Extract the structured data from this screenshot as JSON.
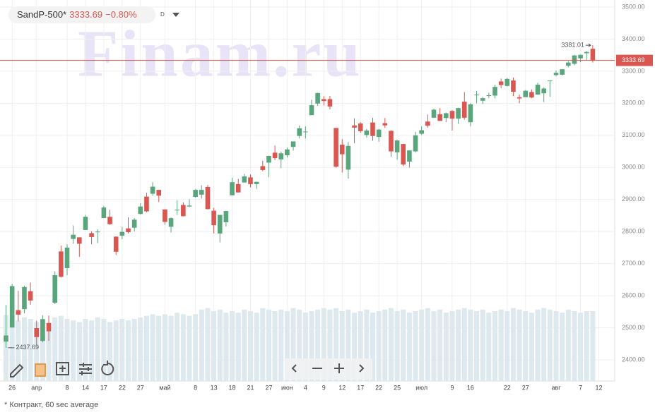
{
  "header": {
    "symbol": "SandP-500*",
    "change": "−0.80%",
    "interval": "D"
  },
  "watermark": "Finam.ru",
  "footnote": "* Контракт, 60 sec average",
  "chart_data": {
    "type": "candlestick",
    "categories": [
      null,
      "26",
      null,
      null,
      null,
      "апр",
      null,
      null,
      null,
      null,
      "8",
      null,
      null,
      "14",
      null,
      null,
      "17",
      null,
      null,
      "22",
      null,
      null,
      "27",
      null,
      null,
      null,
      "май",
      null,
      null,
      null,
      null,
      "8",
      null,
      null,
      "13",
      null,
      null,
      "18",
      null,
      null,
      "21",
      null,
      null,
      "27",
      null,
      null,
      "июн",
      null,
      null,
      "4",
      null,
      null,
      "9",
      null,
      null,
      "12",
      null,
      null,
      "17",
      null,
      null,
      "22",
      null,
      null,
      "25",
      null,
      null,
      null,
      "июл",
      null,
      null,
      null,
      null,
      "9",
      null,
      null,
      "16",
      null,
      null,
      null,
      null,
      null,
      "22",
      null,
      null,
      "27",
      null,
      null,
      null,
      null,
      "авг",
      null,
      null,
      null,
      "7",
      null,
      null,
      "12"
    ],
    "open": [
      2457,
      2501,
      2555,
      2558,
      2614,
      2499,
      2459,
      2515,
      2578,
      2738,
      2686,
      2777,
      2782,
      2805,
      2795,
      2799,
      2842,
      2846,
      2784,
      2787,
      2810,
      2812,
      2855,
      2909,
      2918,
      2930,
      2869,
      2815,
      2868,
      2883,
      2878,
      2908,
      2915,
      2939,
      2865,
      2794,
      2829,
      2913,
      2948,
      2953,
      2969,
      2948,
      3004,
      3015,
      3046,
      3025,
      3038,
      3064,
      3098,
      3112,
      3163,
      3199,
      3213,
      3213,
      3123,
      3071,
      2993,
      3131,
      3137,
      3101,
      3140,
      3095,
      3138,
      3114,
      3047,
      3073,
      3018,
      3050,
      3105,
      3143,
      3155,
      3166,
      3154,
      3176,
      3152,
      3205,
      3141,
      3225,
      3208,
      3224,
      3224,
      3268,
      3254,
      3271,
      3219,
      3219,
      3235,
      3227,
      3231,
      3270,
      3288,
      3289,
      3317,
      3323,
      3340,
      3356,
      3370,
      null
    ],
    "high": [
      2571,
      2637,
      2615,
      2631,
      2641,
      2522,
      2539,
      2538,
      2676,
      2756,
      2760,
      2819,
      2782,
      2852,
      2801,
      2807,
      2880,
      2868,
      2785,
      2815,
      2844,
      2842,
      2888,
      2921,
      2954,
      2930,
      2869,
      2844,
      2898,
      2891,
      2901,
      2932,
      2944,
      2945,
      2874,
      2852,
      2865,
      2968,
      2964,
      2980,
      2978,
      2956,
      3021,
      3036,
      3068,
      3049,
      3062,
      3081,
      3131,
      3128,
      3211,
      3233,
      3222,
      3223,
      3123,
      3088,
      3079,
      3153,
      3141,
      3120,
      3155,
      3120,
      3154,
      3116,
      3086,
      3073,
      3053,
      3111,
      3128,
      3165,
      3183,
      3185,
      3171,
      3179,
      3186,
      3235,
      3200,
      3238,
      3220,
      3233,
      3258,
      3277,
      3279,
      3280,
      3227,
      3241,
      3243,
      3264,
      3250,
      3272,
      3302,
      3306,
      3331,
      3351,
      3352,
      3363,
      3381.01,
      null
    ],
    "low": [
      2437.69,
      2500,
      2520,
      2545,
      2572,
      2447,
      2455,
      2459,
      2574,
      2657,
      2664,
      2762,
      2721,
      2805,
      2761,
      2764,
      2842,
      2821,
      2727,
      2776,
      2794,
      2800,
      2853,
      2860,
      2912,
      2892,
      2821,
      2797,
      2852,
      2847,
      2876,
      2906,
      2903,
      2869,
      2794,
      2766,
      2816,
      2913,
      2922,
      2953,
      2938,
      2933,
      2988,
      2969,
      3023,
      2998,
      3031,
      3052,
      3090,
      3090,
      3163,
      3192,
      3193,
      3181,
      2999,
      2984,
      2965,
      3076,
      3108,
      3093,
      3083,
      3080,
      3123,
      3033,
      3024,
      3004,
      2999,
      3047,
      3101,
      3124,
      3155,
      3146,
      3141,
      3115,
      3136,
      3149,
      3128,
      3200,
      3198,
      3216,
      3215,
      3247,
      3252,
      3222,
      3200,
      3219,
      3216,
      3227,
      3204,
      3220,
      3284,
      3287,
      3312,
      3318,
      3328,
      3335,
      3327,
      null
    ],
    "close": [
      2476,
      2630,
      2541,
      2627,
      2585,
      2471,
      2527,
      2489,
      2664,
      2659,
      2750,
      2790,
      2762,
      2846,
      2783,
      2800,
      2875,
      2823,
      2737,
      2799,
      2798,
      2837,
      2878,
      2863,
      2940,
      2912,
      2830,
      2842,
      2868,
      2848,
      2881,
      2930,
      2930,
      2870,
      2820,
      2852,
      2864,
      2954,
      2922,
      2972,
      2948,
      2955,
      2992,
      3036,
      3029,
      3044,
      3056,
      3081,
      3122,
      3112,
      3194,
      3232,
      3207,
      3190,
      3002,
      3041,
      3067,
      3124,
      3113,
      3115,
      3098,
      3118,
      3131,
      3050,
      3084,
      3009,
      3053,
      3100,
      3116,
      3130,
      3180,
      3145,
      3169,
      3152,
      3185,
      3155,
      3197,
      3227,
      3216,
      3225,
      3251,
      3257,
      3276,
      3236,
      3215,
      3239,
      3218,
      3258,
      3246,
      3271,
      3295,
      3306,
      3327,
      3349,
      3351,
      3360,
      3333.69,
      null
    ],
    "volume": [
      85,
      80,
      78,
      82,
      80,
      76,
      78,
      74,
      82,
      84,
      80,
      78,
      76,
      80,
      78,
      82,
      80,
      76,
      78,
      80,
      78,
      80,
      82,
      84,
      86,
      84,
      86,
      84,
      88,
      86,
      84,
      86,
      92,
      94,
      90,
      92,
      88,
      90,
      88,
      92,
      90,
      88,
      94,
      92,
      90,
      92,
      90,
      94,
      92,
      88,
      90,
      92,
      94,
      92,
      94,
      90,
      92,
      88,
      90,
      92,
      88,
      90,
      92,
      94,
      90,
      92,
      88,
      90,
      92,
      94,
      90,
      92,
      88,
      90,
      92,
      94,
      92,
      90,
      92,
      88,
      90,
      92,
      90,
      94,
      92,
      90,
      88,
      92,
      94,
      92,
      90,
      88,
      92,
      90,
      88,
      90,
      90,
      null
    ],
    "ylim": [
      2334,
      3522
    ],
    "yticks": [
      {
        "value": 2400,
        "label": "2400.00"
      },
      {
        "value": 2500,
        "label": "2500.00"
      },
      {
        "value": 2600,
        "label": "2600.00"
      },
      {
        "value": 2700,
        "label": "2700.00"
      },
      {
        "value": 2800,
        "label": "2800.00"
      },
      {
        "value": 2900,
        "label": "2900.00"
      },
      {
        "value": 3000,
        "label": "3000.00"
      },
      {
        "value": 3100,
        "label": "3100.00"
      },
      {
        "value": 3200,
        "label": "3200.00"
      },
      {
        "value": 3300,
        "label": "3300.00"
      },
      {
        "value": 3400,
        "label": "3400.00"
      },
      {
        "value": 3500,
        "label": "3500.00"
      }
    ],
    "y2lim": [
      0,
      100
    ],
    "last_price": 3333.69,
    "high_marker": 3381.01,
    "low_marker": 2437.69,
    "up_color": "#5aa67c",
    "down_color": "#d95750",
    "volume_color": "#dde8ef",
    "grid": true
  }
}
